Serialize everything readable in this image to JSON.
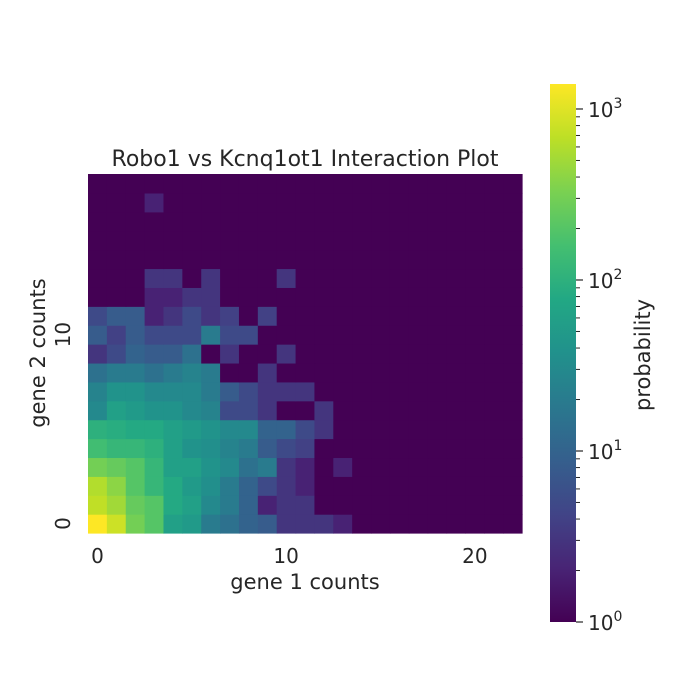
{
  "chart_data": {
    "type": "heatmap",
    "title": "Robo1 vs Kcnq1ot1 Interaction Plot",
    "xlabel": "gene 1 counts",
    "ylabel": "gene 2 counts",
    "x_ticks": [
      {
        "value": 0,
        "label": "0"
      },
      {
        "value": 10,
        "label": "10"
      },
      {
        "value": 20,
        "label": "20"
      }
    ],
    "y_ticks": [
      {
        "value": 0,
        "label": "0"
      },
      {
        "value": 10,
        "label": "10"
      }
    ],
    "x_range": [
      0,
      22
    ],
    "y_range": [
      0,
      18
    ],
    "colormap": "viridis",
    "color_scale": "log",
    "colorbar": {
      "label": "probability",
      "range": [
        1,
        1400
      ],
      "ticks": [
        {
          "value": 1,
          "base": "10",
          "exp": "0"
        },
        {
          "value": 10,
          "base": "10",
          "exp": "1"
        },
        {
          "value": 100,
          "base": "10",
          "exp": "2"
        },
        {
          "value": 1000,
          "base": "10",
          "exp": "3"
        }
      ]
    },
    "rows_from_y0": [
      [
        1400,
        800,
        300,
        200,
        60,
        50,
        20,
        15,
        10,
        8,
        3,
        3,
        3,
        2,
        1,
        1,
        1,
        1,
        1,
        1,
        1,
        1,
        1
      ],
      [
        700,
        500,
        250,
        200,
        80,
        60,
        30,
        20,
        10,
        2,
        3,
        3,
        1,
        1,
        1,
        1,
        1,
        1,
        1,
        1,
        1,
        1,
        1
      ],
      [
        600,
        400,
        200,
        120,
        80,
        50,
        35,
        20,
        10,
        5,
        3,
        2,
        1,
        1,
        1,
        1,
        1,
        1,
        1,
        1,
        1,
        1,
        1
      ],
      [
        300,
        250,
        200,
        120,
        60,
        60,
        40,
        30,
        15,
        20,
        3,
        2,
        1,
        2,
        1,
        1,
        1,
        1,
        1,
        1,
        1,
        1,
        1
      ],
      [
        150,
        120,
        120,
        100,
        60,
        40,
        35,
        25,
        20,
        8,
        5,
        4,
        1,
        1,
        1,
        1,
        1,
        1,
        1,
        1,
        1,
        1,
        1
      ],
      [
        100,
        90,
        80,
        80,
        60,
        50,
        40,
        30,
        30,
        10,
        10,
        5,
        3,
        1,
        1,
        1,
        1,
        1,
        1,
        1,
        1,
        1,
        1
      ],
      [
        30,
        60,
        50,
        40,
        40,
        30,
        25,
        5,
        5,
        3,
        1,
        1,
        3,
        1,
        1,
        1,
        1,
        1,
        1,
        1,
        1,
        1,
        1
      ],
      [
        25,
        40,
        40,
        30,
        30,
        30,
        20,
        8,
        5,
        3,
        3,
        3,
        1,
        1,
        1,
        1,
        1,
        1,
        1,
        1,
        1,
        1,
        1
      ],
      [
        15,
        20,
        20,
        15,
        20,
        25,
        20,
        1,
        1,
        3,
        1,
        1,
        1,
        1,
        1,
        1,
        1,
        1,
        1,
        1,
        1,
        1,
        1
      ],
      [
        3,
        5,
        10,
        8,
        8,
        15,
        1,
        3,
        1,
        1,
        3,
        1,
        1,
        1,
        1,
        1,
        1,
        1,
        1,
        1,
        1,
        1,
        1
      ],
      [
        8,
        4,
        8,
        5,
        5,
        5,
        20,
        5,
        5,
        1,
        1,
        1,
        1,
        1,
        1,
        1,
        1,
        1,
        1,
        1,
        1,
        1,
        1
      ],
      [
        5,
        8,
        8,
        2,
        3,
        5,
        3,
        4,
        1,
        4,
        1,
        1,
        1,
        1,
        1,
        1,
        1,
        1,
        1,
        1,
        1,
        1,
        1
      ],
      [
        1,
        1,
        1,
        2,
        2,
        3,
        3,
        1,
        1,
        1,
        1,
        1,
        1,
        1,
        1,
        1,
        1,
        1,
        1,
        1,
        1,
        1,
        1
      ],
      [
        1,
        1,
        1,
        3,
        3,
        1,
        3,
        1,
        1,
        1,
        3,
        1,
        1,
        1,
        1,
        1,
        1,
        1,
        1,
        1,
        1,
        1,
        1
      ],
      [
        1,
        1,
        1,
        1,
        1,
        1,
        1,
        1,
        1,
        1,
        1,
        1,
        1,
        1,
        1,
        1,
        1,
        1,
        1,
        1,
        1,
        1,
        1
      ],
      [
        1,
        1,
        1,
        1,
        1,
        1,
        1,
        1,
        1,
        1,
        1,
        1,
        1,
        1,
        1,
        1,
        1,
        1,
        1,
        1,
        1,
        1,
        1
      ],
      [
        1,
        1,
        1,
        1,
        1,
        1,
        1,
        1,
        1,
        1,
        1,
        1,
        1,
        1,
        1,
        1,
        1,
        1,
        1,
        1,
        1,
        1,
        1
      ],
      [
        1,
        1,
        1,
        2,
        1,
        1,
        1,
        1,
        1,
        1,
        1,
        1,
        1,
        1,
        1,
        1,
        1,
        1,
        1,
        1,
        1,
        1,
        1
      ],
      [
        1,
        1,
        1,
        1,
        1,
        1,
        1,
        1,
        1,
        1,
        1,
        1,
        1,
        1,
        1,
        1,
        1,
        1,
        1,
        1,
        1,
        1,
        1
      ]
    ]
  }
}
